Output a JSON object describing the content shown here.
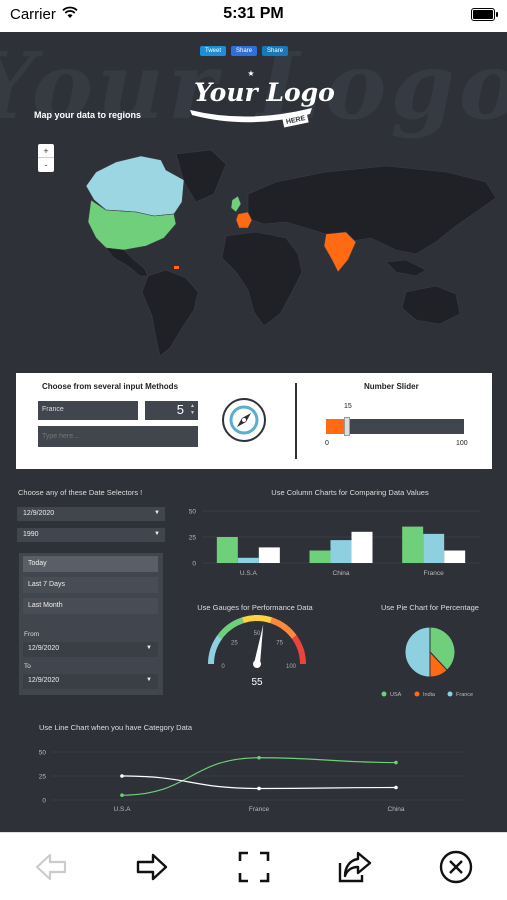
{
  "status": {
    "carrier": "Carrier",
    "time": "5:31 PM"
  },
  "share": {
    "tweet": "Tweet",
    "fb_share": "Share",
    "li_share": "Share"
  },
  "logo": {
    "text": "Your Logo",
    "here": "HERE",
    "watermark": "Your Logo"
  },
  "map": {
    "title": "Map your data to regions",
    "zoom_in": "+",
    "zoom_out": "-",
    "colors": {
      "usa": "#6fcf7b",
      "canada": "#9dd6e3",
      "highlight": "#ff6a13",
      "land": "#1f2126"
    }
  },
  "inputs": {
    "title": "Choose from several input Methods",
    "country": "France",
    "number": "5",
    "text_placeholder": "Type here...",
    "compass_icon": "compass-icon"
  },
  "slider": {
    "title": "Number Slider",
    "value": 15,
    "min": "0",
    "max": "100",
    "value_label": "15"
  },
  "date": {
    "title": "Choose any of these Date Selectors !",
    "date_value": "12/9/2020",
    "year_value": "1990",
    "options": [
      "Today",
      "Last 7 Days",
      "Last Month"
    ],
    "from_label": "From",
    "from_value": "12/9/2020",
    "to_label": "To",
    "to_value": "12/9/2020"
  },
  "chart_data": [
    {
      "type": "bar",
      "title": "Use Column Charts for Comparing Data Values",
      "categories": [
        "U.S.A",
        "China",
        "France"
      ],
      "series": [
        {
          "color": "#6fcf7b",
          "values": [
            25,
            12,
            35
          ]
        },
        {
          "color": "#8ecfe0",
          "values": [
            5,
            22,
            28
          ]
        },
        {
          "color": "#ffffff",
          "values": [
            15,
            30,
            12
          ]
        }
      ],
      "yticks": [
        "0",
        "25",
        "50"
      ],
      "ylim": [
        0,
        50
      ]
    },
    {
      "type": "gauge",
      "title": "Use Gauges for Performance Data",
      "value": 55,
      "value_label": "55",
      "ticks": [
        "0",
        "25",
        "50",
        "75",
        "100"
      ],
      "range": [
        0,
        100
      ]
    },
    {
      "type": "pie",
      "title": "Use Pie Chart for Percentage",
      "categories": [
        "USA",
        "India",
        "France"
      ],
      "values": [
        38,
        12,
        50
      ],
      "colors": [
        "#6fcf7b",
        "#ff6a13",
        "#8ecfe0"
      ]
    },
    {
      "type": "line",
      "title": "Use Line Chart when you have Category Data",
      "categories": [
        "U.S.A",
        "France",
        "China"
      ],
      "series": [
        {
          "color": "#6fcf7b",
          "values": [
            5,
            44,
            39
          ]
        },
        {
          "color": "#ffffff",
          "values": [
            25,
            12,
            13
          ]
        }
      ],
      "yticks": [
        "0",
        "25",
        "50"
      ],
      "ylim": [
        0,
        50
      ]
    }
  ],
  "nav": {
    "back_icon": "arrow-left-icon",
    "forward_icon": "arrow-right-icon",
    "fullscreen_icon": "fullscreen-icon",
    "share_icon": "share-icon",
    "close_icon": "close-circle-icon"
  }
}
